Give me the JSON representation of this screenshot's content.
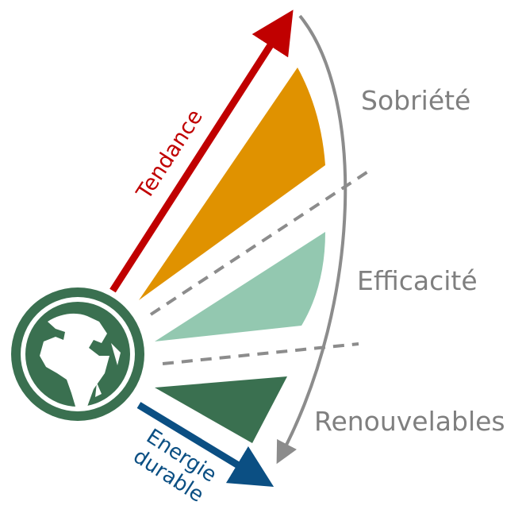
{
  "labels": {
    "tendance": "Tendance",
    "sobriete": "Sobriété",
    "efficacite": "Efficacité",
    "renouvelables": "Renouvelables",
    "energie_durable": [
      "Energie",
      "durable"
    ]
  }
}
